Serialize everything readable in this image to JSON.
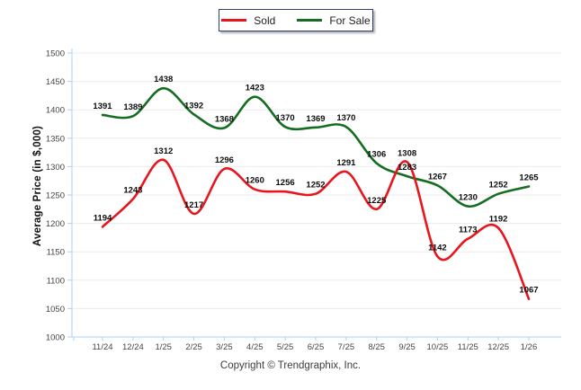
{
  "legend": {
    "items": [
      {
        "label": "Sold",
        "color": "#e8151d"
      },
      {
        "label": "For Sale",
        "color": "#156d21"
      }
    ]
  },
  "y_axis_title": "Average Price (in $,000)",
  "footer": {
    "copyright": "Copyright © Trendgraphix, Inc."
  },
  "chart_data": {
    "type": "line",
    "title": "",
    "xlabel": "",
    "ylabel": "Average Price (in $,000)",
    "categories": [
      "11/24",
      "12/24",
      "1/25",
      "2/25",
      "3/25",
      "4/25",
      "5/25",
      "6/25",
      "7/25",
      "8/25",
      "9/25",
      "10/25",
      "11/25",
      "12/25",
      "1/26"
    ],
    "series": [
      {
        "name": "Sold",
        "color": "#e8151d",
        "values": [
          1194,
          1243,
          1312,
          1217,
          1296,
          1260,
          1256,
          1252,
          1291,
          1225,
          1308,
          1142,
          1173,
          1192,
          1067
        ]
      },
      {
        "name": "For Sale",
        "color": "#156d21",
        "values": [
          1391,
          1389,
          1438,
          1392,
          1368,
          1423,
          1370,
          1369,
          1370,
          1306,
          1283,
          1267,
          1230,
          1252,
          1265
        ]
      }
    ],
    "ylim": [
      1000,
      1500
    ],
    "ytick_step": 50,
    "grid": "horizontal",
    "legend_position": "top-center",
    "smooth": true,
    "data_labels": true,
    "axis_color": "#a9d2f3",
    "grid_color": "#ebebeb",
    "tick_label_color": "#454545",
    "data_label_color": "#0d0d0d"
  }
}
